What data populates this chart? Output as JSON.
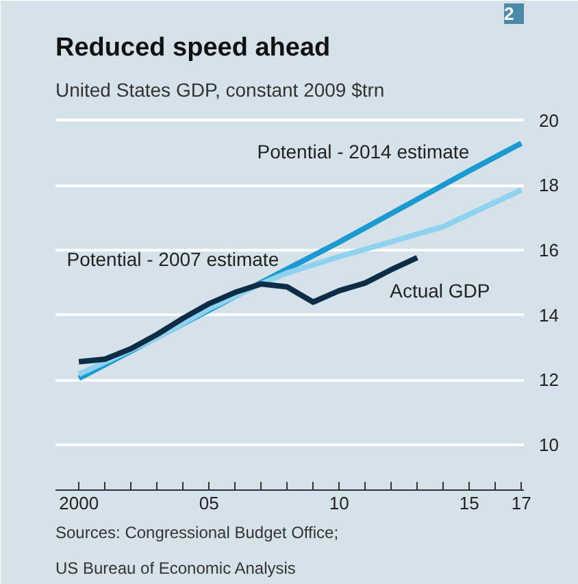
{
  "chart_data": {
    "type": "line",
    "title": "Reduced speed ahead",
    "subtitle": "United States GDP, constant 2009 $trn",
    "annotations": [
      "2",
      "Sources: Congressional Budget Office;",
      "US Bureau of Economic Analysis"
    ],
    "series": [
      {
        "name": "Potential - 2014 estimate",
        "color": "#1b9ad2",
        "x": [
          2000,
          2005,
          2007,
          2010,
          2015,
          2017
        ],
        "values": [
          12.05,
          14.15,
          15.0,
          16.25,
          18.45,
          19.3
        ]
      },
      {
        "name": "Potential - 2007 estimate",
        "color": "#8fd2ef",
        "x": [
          2000,
          2003,
          2005,
          2007,
          2008,
          2010,
          2012,
          2014,
          2017
        ],
        "values": [
          12.17,
          13.3,
          14.2,
          14.96,
          15.3,
          15.8,
          16.26,
          16.73,
          17.86
        ]
      },
      {
        "name": "Actual GDP",
        "color": "#0c2d45",
        "x": [
          2000,
          2001,
          2002,
          2003,
          2004,
          2005,
          2006,
          2007,
          2008,
          2009,
          2010,
          2011,
          2012,
          2013
        ],
        "values": [
          12.56,
          12.64,
          12.96,
          13.4,
          13.9,
          14.35,
          14.7,
          14.96,
          14.87,
          14.4,
          14.75,
          14.99,
          15.4,
          15.77
        ]
      }
    ],
    "xlim": [
      1999.1,
      2017.1
    ],
    "xticks": [
      2000,
      {
        "value": 2001,
        "label": null
      },
      {
        "value": 2002,
        "label": null
      },
      {
        "value": 2003,
        "label": null
      },
      {
        "value": 2004,
        "label": null
      },
      {
        "value": 2005,
        "label": "05"
      },
      {
        "value": 2006,
        "label": null
      },
      {
        "value": 2007,
        "label": null
      },
      {
        "value": 2008,
        "label": null
      },
      {
        "value": 2009,
        "label": null
      },
      {
        "value": 2010,
        "label": "10"
      },
      {
        "value": 2011,
        "label": null
      },
      {
        "value": 2012,
        "label": null
      },
      {
        "value": 2013,
        "label": null
      },
      {
        "value": 2014,
        "label": null
      },
      {
        "value": 2015,
        "label": "15"
      },
      {
        "value": 2016,
        "label": null
      },
      {
        "value": 2017,
        "label": "17"
      }
    ],
    "ylim": [
      8.6,
      20.4
    ],
    "yticks": [
      10,
      12,
      14,
      16,
      18,
      20
    ],
    "grid": "y"
  }
}
